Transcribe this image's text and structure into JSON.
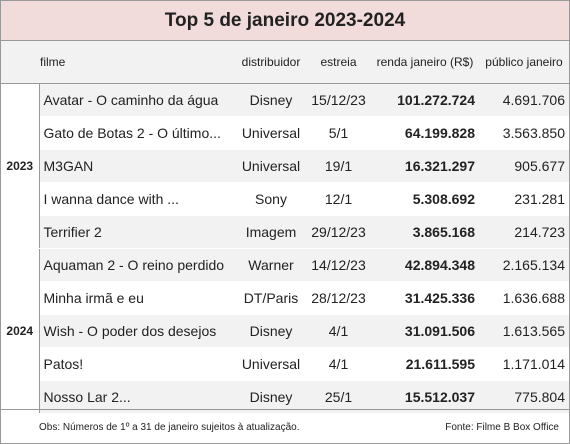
{
  "header": {
    "title": "Top 5 de janeiro 2023-2024"
  },
  "table": {
    "columns": [
      "filme",
      "distribuidor",
      "estreia",
      "renda janeiro (R$)",
      "público janeiro"
    ],
    "groups": [
      {
        "year": "2023",
        "rows": [
          [
            "Avatar - O caminho da água",
            "Disney",
            "15/12/23",
            "101.272.724",
            "4.691.706"
          ],
          [
            "Gato de Botas 2 - O último...",
            "Universal",
            "5/1",
            "64.199.828",
            "3.563.850"
          ],
          [
            "M3GAN",
            "Universal",
            "19/1",
            "16.321.297",
            "905.677"
          ],
          [
            "I wanna dance with ...",
            "Sony",
            "12/1",
            "5.308.692",
            "231.281"
          ],
          [
            "Terrifier 2",
            "Imagem",
            "29/12/23",
            "3.865.168",
            "214.723"
          ]
        ]
      },
      {
        "year": "2024",
        "rows": [
          [
            "Aquaman 2 - O reino perdido",
            "Warner",
            "14/12/23",
            "42.894.348",
            "2.165.134"
          ],
          [
            "Minha irmã e eu",
            "DT/Paris",
            "28/12/23",
            "31.425.336",
            "1.636.688"
          ],
          [
            "Wish - O poder dos desejos",
            "Disney",
            "4/1",
            "31.091.506",
            "1.613.565"
          ],
          [
            "Patos!",
            "Universal",
            "4/1",
            "21.611.595",
            "1.171.014"
          ],
          [
            "Nosso Lar 2...",
            "Disney",
            "25/1",
            "15.512.037",
            "775.804"
          ]
        ]
      }
    ]
  },
  "footer": {
    "note": "Obs: Números de 1º a 31 de janeiro sujeitos à atualização.",
    "source": "Fonte: Filme B Box Office"
  }
}
